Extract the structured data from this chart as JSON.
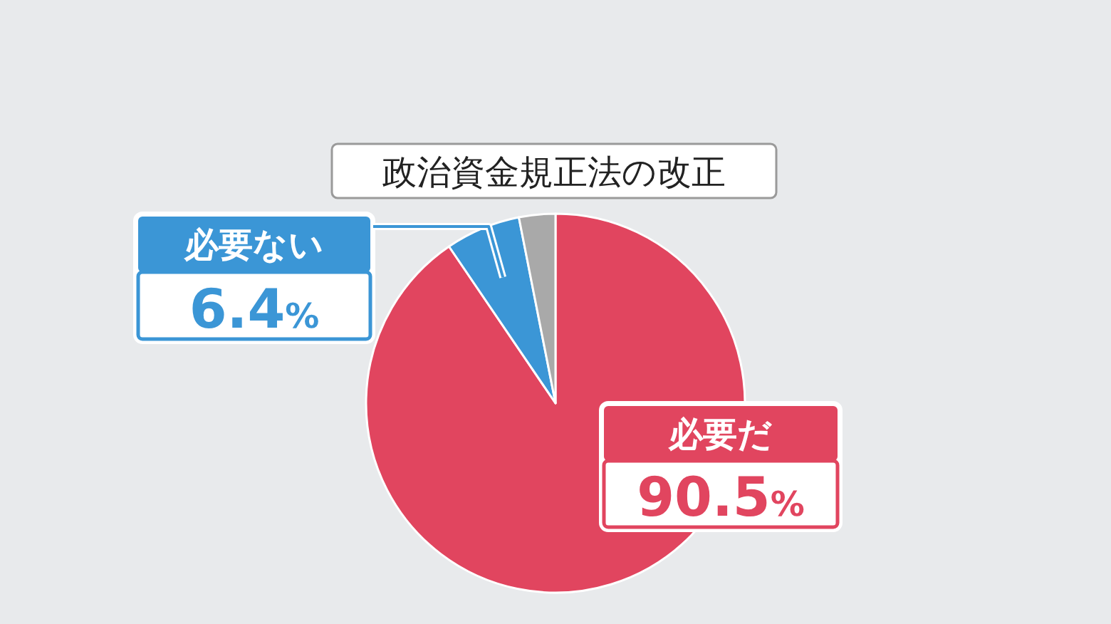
{
  "chart_data": {
    "type": "pie",
    "title": "政治資金規正法の改正",
    "categories": [
      "必要だ",
      "必要ない",
      null
    ],
    "values": [
      90.5,
      6.4,
      3.1
    ],
    "colors": [
      "#e1455f",
      "#3b96d6",
      "#a9a9a9"
    ],
    "value_labels": [
      "90.5%",
      "6.4%",
      null
    ]
  }
}
